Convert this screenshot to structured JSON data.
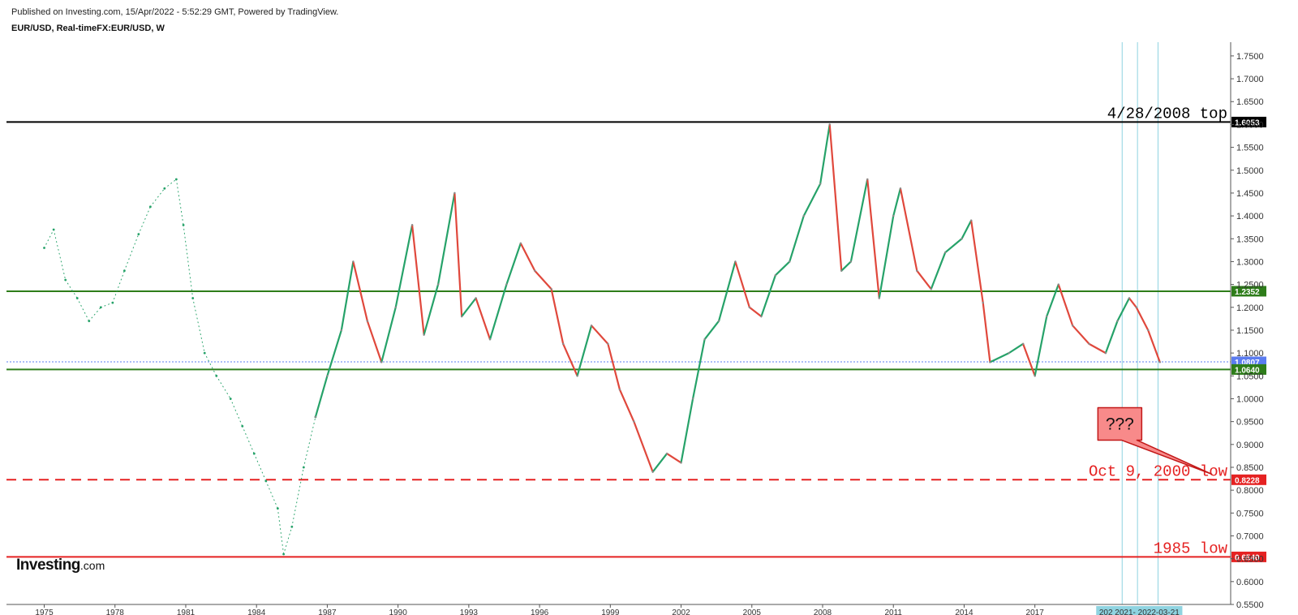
{
  "header": {
    "published": "Published on Investing.com, 15/Apr/2022 - 5:52:29 GMT, Powered by TradingView.",
    "instrument": "EUR/USD, Real-timeFX:EUR/USD, W"
  },
  "logo": {
    "main": "Investing",
    "suffix": ".com"
  },
  "chart_data": {
    "type": "line",
    "ylim": [
      0.55,
      1.78
    ],
    "xlim": [
      1973.4,
      2025.3
    ],
    "y_ticks": [
      "0.5500",
      "0.6000",
      "0.6500",
      "0.7000",
      "0.7500",
      "0.8000",
      "0.8500",
      "0.9000",
      "0.9500",
      "1.0000",
      "1.0500",
      "1.1000",
      "1.1500",
      "1.2000",
      "1.2500",
      "1.3000",
      "1.3500",
      "1.4000",
      "1.4500",
      "1.5000",
      "1.5500",
      "1.6000",
      "1.6500",
      "1.7000",
      "1.7500"
    ],
    "x_ticks": [
      "1975",
      "1978",
      "1981",
      "1984",
      "1987",
      "1990",
      "1993",
      "1996",
      "1999",
      "2002",
      "2005",
      "2008",
      "2011",
      "2014",
      "2017"
    ],
    "x_tick_positions": [
      1975,
      1978,
      1981,
      1984,
      1987,
      1990,
      1993,
      1996,
      1999,
      2002,
      2005,
      2008,
      2011,
      2014,
      2017
    ],
    "series": [
      {
        "name": "",
        "style": "dotted",
        "x": [
          1975.0,
          1975.4,
          1975.9,
          1976.4,
          1976.9,
          1977.4,
          1977.9,
          1978.4,
          1979.0,
          1979.5,
          1980.1,
          1980.6,
          1980.9,
          1981.3,
          1981.8,
          1982.3,
          1982.9,
          1983.4,
          1983.9,
          1984.4,
          1984.9,
          1985.15,
          1985.5,
          1986.0,
          1986.5
        ],
        "values": [
          1.33,
          1.37,
          1.26,
          1.22,
          1.17,
          1.2,
          1.21,
          1.28,
          1.36,
          1.42,
          1.46,
          1.48,
          1.38,
          1.22,
          1.1,
          1.05,
          1.0,
          0.94,
          0.88,
          0.82,
          0.76,
          0.66,
          0.72,
          0.85,
          0.96
        ]
      },
      {
        "name": "EUR/USD",
        "style": "candles",
        "x": [
          1986.5,
          1987.0,
          1987.6,
          1988.1,
          1988.7,
          1989.3,
          1989.9,
          1990.6,
          1991.1,
          1991.7,
          1992.4,
          1992.7,
          1993.3,
          1993.9,
          1994.6,
          1995.2,
          1995.8,
          1996.5,
          1997.0,
          1997.6,
          1998.2,
          1998.9,
          1999.4,
          2000.0,
          2000.8,
          2001.4,
          2002.0,
          2002.5,
          2003.0,
          2003.6,
          2004.3,
          2004.9,
          2005.4,
          2006.0,
          2006.6,
          2007.2,
          2007.9,
          2008.3,
          2008.8,
          2009.2,
          2009.9,
          2010.4,
          2011.0,
          2011.3,
          2012.0,
          2012.6,
          2013.2,
          2013.9,
          2014.3,
          2014.8,
          2015.1,
          2015.9,
          2016.5,
          2017.0,
          2017.5,
          2018.0,
          2018.6,
          2019.3,
          2020.0,
          2020.5,
          2021.0,
          2021.3,
          2021.8,
          2022.3
        ],
        "values": [
          0.96,
          1.05,
          1.15,
          1.3,
          1.17,
          1.08,
          1.2,
          1.38,
          1.14,
          1.25,
          1.45,
          1.18,
          1.22,
          1.13,
          1.25,
          1.34,
          1.28,
          1.24,
          1.12,
          1.05,
          1.16,
          1.12,
          1.02,
          0.95,
          0.84,
          0.88,
          0.86,
          1.0,
          1.13,
          1.17,
          1.3,
          1.2,
          1.18,
          1.27,
          1.3,
          1.4,
          1.47,
          1.6,
          1.28,
          1.3,
          1.48,
          1.22,
          1.4,
          1.46,
          1.28,
          1.24,
          1.32,
          1.35,
          1.39,
          1.21,
          1.08,
          1.1,
          1.12,
          1.05,
          1.18,
          1.25,
          1.16,
          1.12,
          1.1,
          1.17,
          1.22,
          1.2,
          1.15,
          1.08
        ]
      }
    ],
    "levels": [
      {
        "value": 1.6053,
        "label": "1.6053",
        "color": "#000000",
        "style": "solid",
        "note": "4/28/2008 top",
        "note_color": "#000000"
      },
      {
        "value": 1.2352,
        "label": "1.2352",
        "color": "#2e7d1a",
        "style": "solid"
      },
      {
        "value": 1.0807,
        "label": "1.0807",
        "color": "#5b7cf0",
        "style": "dotted"
      },
      {
        "value": 1.064,
        "label": "1.0640",
        "color": "#2e7d1a",
        "style": "solid"
      },
      {
        "value": 0.8228,
        "label": "0.8228",
        "color": "#e52222",
        "style": "dashed",
        "note": "Oct 9, 2000 low",
        "note_color": "#e52222"
      },
      {
        "value": 0.654,
        "label": "0.6540",
        "color": "#e52222",
        "style": "solid",
        "note": "1985 low",
        "note_color": "#e52222"
      }
    ],
    "vertical_markers": [
      2020.7,
      2021.35,
      2022.22
    ],
    "range_tag": "202 2021- 2022-03-21",
    "callout": {
      "text": "???",
      "x": 2020.6,
      "y": 0.945,
      "pointer_x": 2024.5,
      "pointer_y": 0.835
    },
    "colors": {
      "up": "#26a269",
      "down": "#e0483c",
      "neutral": "#8a8a8a",
      "marker": "#8fd3e0",
      "tag_bg": "#8fd3e0"
    }
  }
}
